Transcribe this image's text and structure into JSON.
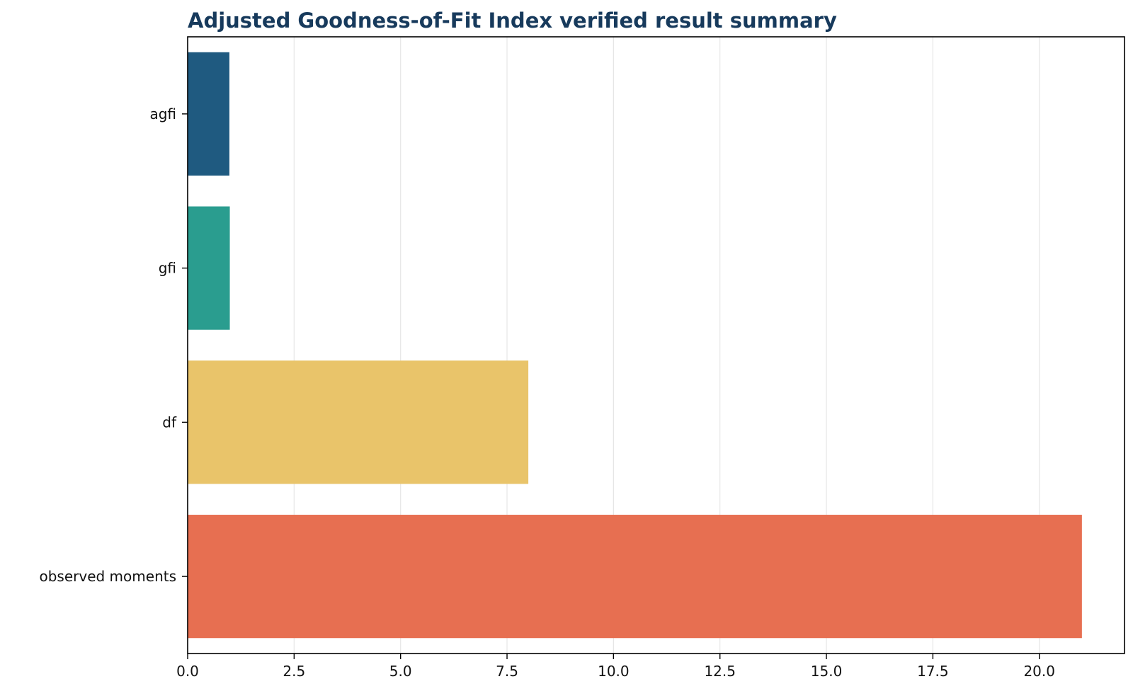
{
  "chart_data": {
    "type": "bar",
    "orientation": "horizontal",
    "title": "Adjusted Goodness-of-Fit Index verified result summary",
    "xlabel": "",
    "ylabel": "",
    "categories": [
      "agfi",
      "gfi",
      "df",
      "observed moments"
    ],
    "values": [
      0.98,
      0.99,
      8,
      21
    ],
    "xlim": [
      0,
      22
    ],
    "xticks": [
      0.0,
      2.5,
      5.0,
      7.5,
      10.0,
      12.5,
      15.0,
      17.5,
      20.0
    ],
    "xtick_labels": [
      "0.0",
      "2.5",
      "5.0",
      "7.5",
      "10.0",
      "12.5",
      "15.0",
      "17.5",
      "20.0"
    ],
    "grid": "vertical",
    "colors": [
      "#1f5a80",
      "#2a9d8f",
      "#e9c46a",
      "#e76f51"
    ],
    "title_color": "#173a5c",
    "grid_color": "#e6e6e6"
  }
}
